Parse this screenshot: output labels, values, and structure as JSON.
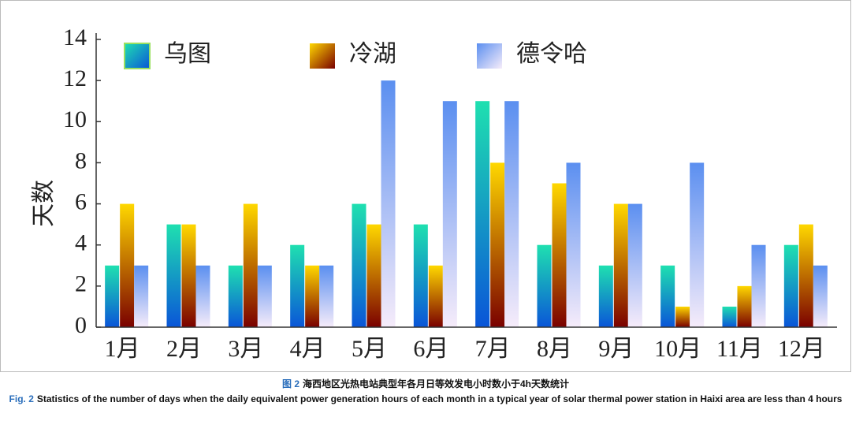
{
  "chart_data": {
    "type": "bar",
    "ylabel": "天数",
    "categories": [
      "1月",
      "2月",
      "3月",
      "4月",
      "5月",
      "6月",
      "7月",
      "8月",
      "9月",
      "10月",
      "11月",
      "12月"
    ],
    "series": [
      {
        "name": "乌图",
        "color": [
          "#1fe0b0",
          "#0a55d8"
        ],
        "values": [
          3,
          5,
          3,
          4,
          6,
          5,
          11,
          4,
          3,
          3,
          1,
          4
        ]
      },
      {
        "name": "冷湖",
        "color": [
          "#ffd800",
          "#7a0000"
        ],
        "values": [
          6,
          5,
          6,
          3,
          5,
          3,
          8,
          7,
          6,
          1,
          2,
          5
        ]
      },
      {
        "name": "德令哈",
        "color": [
          "#5b8ff0",
          "#f6ecfa"
        ],
        "values": [
          3,
          3,
          3,
          3,
          12,
          11,
          11,
          8,
          6,
          8,
          4,
          3
        ]
      }
    ],
    "ylim": [
      0,
      14
    ],
    "yticks": [
      0,
      2,
      4,
      6,
      8,
      10,
      12,
      14
    ],
    "grid": false,
    "caption": {
      "label": "图 2",
      "text": "海西地区光热电站典型年各月日等效发电小时数小于4h天数统计"
    },
    "caption_en": {
      "label": "Fig. 2",
      "text": "Statistics of the number of days when the daily equivalent power generation hours of each month in a typical year of solar thermal power station in Haixi area are less than 4 hours"
    }
  }
}
